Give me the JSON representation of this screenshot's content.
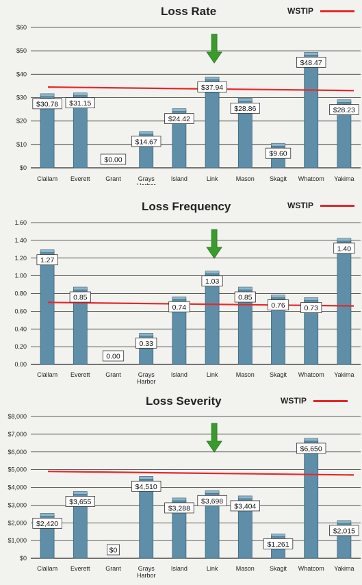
{
  "chart_data": [
    {
      "type": "bar",
      "title": "Loss Rate",
      "categories": [
        "Clallam",
        "Everett",
        "Grant",
        "Grays Harbor",
        "Island",
        "Link",
        "Mason",
        "Skagit",
        "Whatcom",
        "Yakima"
      ],
      "values": [
        30.78,
        31.15,
        0.0,
        14.67,
        24.42,
        37.94,
        28.86,
        9.6,
        48.47,
        28.23
      ],
      "value_labels": [
        "$30.78",
        "$31.15",
        "$0.00",
        "$14.67",
        "$24.42",
        "$37.94",
        "$28.86",
        "$9.60",
        "$48.47",
        "$28.23"
      ],
      "y_ticks": [
        "$0",
        "$10",
        "$20",
        "$30",
        "$40",
        "$50",
        "$60"
      ],
      "ylim": [
        0,
        60
      ],
      "reference_line": {
        "name": "WSTIP",
        "value_start": 34.5,
        "value_end": 33.0,
        "color": "#e8262b"
      },
      "highlight_category": "Link",
      "grid": true,
      "legend_position": "top-right",
      "bar_color": "#5f8fa8",
      "arrow_color": "#3a9a2e"
    },
    {
      "type": "bar",
      "title": "Loss Frequency",
      "categories": [
        "Clallam",
        "Everett",
        "Grant",
        "Grays Harbor",
        "Island",
        "Link",
        "Mason",
        "Skagit",
        "Whatcom",
        "Yakima"
      ],
      "values": [
        1.27,
        0.85,
        0.0,
        0.33,
        0.74,
        1.03,
        0.85,
        0.76,
        0.73,
        1.4
      ],
      "value_labels": [
        "1.27",
        "0.85",
        "0.00",
        "0.33",
        "0.74",
        "1.03",
        "0.85",
        "0.76",
        "0.73",
        "1.40"
      ],
      "y_ticks": [
        "0.00",
        "0.20",
        "0.40",
        "0.60",
        "0.80",
        "1.00",
        "1.20",
        "1.40",
        "1.60"
      ],
      "ylim": [
        0,
        1.6
      ],
      "reference_line": {
        "name": "WSTIP",
        "value_start": 0.7,
        "value_end": 0.66,
        "color": "#e8262b"
      },
      "highlight_category": "Link",
      "grid": true,
      "legend_position": "top-right",
      "bar_color": "#5f8fa8",
      "arrow_color": "#3a9a2e"
    },
    {
      "type": "bar",
      "title": "Loss Severity",
      "categories": [
        "Clallam",
        "Everett",
        "Grant",
        "Grays Harbor",
        "Island",
        "Link",
        "Mason",
        "Skagit",
        "Whatcom",
        "Yakima"
      ],
      "values": [
        2420,
        3655,
        0,
        4510,
        3288,
        3698,
        3404,
        1261,
        6650,
        2015
      ],
      "value_labels": [
        "$2,420",
        "$3,655",
        "$0",
        "$4,510",
        "$3,288",
        "$3,698",
        "$3,404",
        "$1,261",
        "$6,650",
        "$2,015"
      ],
      "y_ticks": [
        "$0",
        "$1,000",
        "$2,000",
        "$3,000",
        "$4,000",
        "$5,000",
        "$6,000",
        "$7,000",
        "$8,000"
      ],
      "ylim": [
        0,
        8000
      ],
      "reference_line": {
        "name": "WSTIP",
        "value_start": 4900,
        "value_end": 4700,
        "color": "#e8262b"
      },
      "highlight_category": "Link",
      "grid": true,
      "legend_position": "top-right",
      "bar_color": "#5f8fa8",
      "arrow_color": "#3a9a2e"
    }
  ]
}
